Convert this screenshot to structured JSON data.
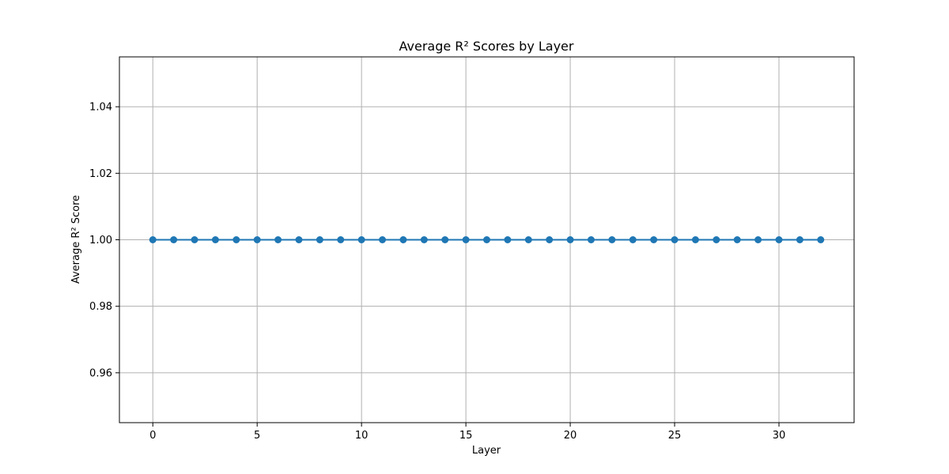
{
  "chart_data": {
    "type": "line",
    "title": "Average R² Scores by Layer",
    "xlabel": "Layer",
    "ylabel": "Average R² Score",
    "xlim": [
      -1.6,
      33.6
    ],
    "ylim": [
      0.945,
      1.055
    ],
    "x_ticks": [
      0,
      5,
      10,
      15,
      20,
      25,
      30
    ],
    "y_ticks": [
      0.96,
      0.98,
      1.0,
      1.02,
      1.04
    ],
    "y_tick_labels": [
      "0.96",
      "0.98",
      "1.00",
      "1.02",
      "1.04"
    ],
    "grid": true,
    "marker": "circle",
    "series": [
      {
        "color": "#1f77b4",
        "x": [
          0,
          1,
          2,
          3,
          4,
          5,
          6,
          7,
          8,
          9,
          10,
          11,
          12,
          13,
          14,
          15,
          16,
          17,
          18,
          19,
          20,
          21,
          22,
          23,
          24,
          25,
          26,
          27,
          28,
          29,
          30,
          31,
          32
        ],
        "values": [
          1.0,
          1.0,
          1.0,
          1.0,
          1.0,
          1.0,
          1.0,
          1.0,
          1.0,
          1.0,
          1.0,
          1.0,
          1.0,
          1.0,
          1.0,
          1.0,
          1.0,
          1.0,
          1.0,
          1.0,
          1.0,
          1.0,
          1.0,
          1.0,
          1.0,
          1.0,
          1.0,
          1.0,
          1.0,
          1.0,
          1.0,
          1.0,
          1.0
        ]
      }
    ]
  }
}
